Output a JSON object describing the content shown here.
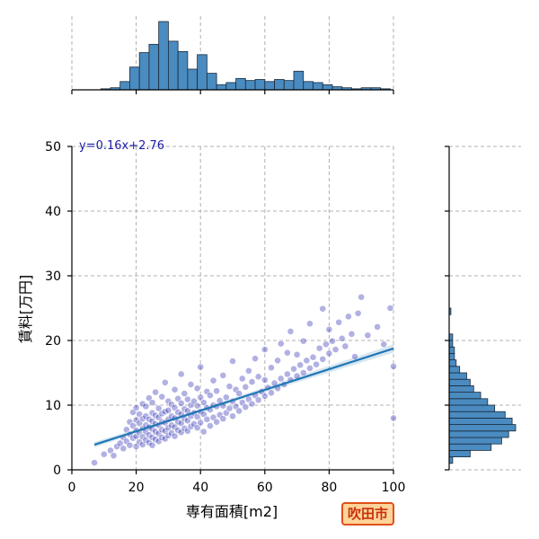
{
  "chart_data": {
    "type": "scatter",
    "xlabel": "専有面積[m2]",
    "ylabel": "賃料[万円]",
    "xlim": [
      0,
      100
    ],
    "ylim": [
      0,
      50
    ],
    "xticks": [
      "0",
      "20",
      "40",
      "60",
      "80",
      "100"
    ],
    "yticks": [
      "0",
      "10",
      "20",
      "30",
      "40",
      "50"
    ],
    "grid": true,
    "annotation": "y=0.16x+2.76",
    "regression": {
      "slope": 0.16,
      "intercept": 2.76,
      "x_range": [
        7,
        100
      ]
    },
    "colors": {
      "points": "#2020b0",
      "regression": "#1f77b4",
      "hist": "#4a8bc0"
    },
    "points": [
      [
        7,
        1.1
      ],
      [
        10,
        2.4
      ],
      [
        12,
        3.0
      ],
      [
        13,
        2.2
      ],
      [
        14,
        3.6
      ],
      [
        15,
        4.1
      ],
      [
        16,
        3.3
      ],
      [
        16,
        5.0
      ],
      [
        17,
        4.4
      ],
      [
        17,
        6.2
      ],
      [
        18,
        3.8
      ],
      [
        18,
        5.5
      ],
      [
        18,
        7.4
      ],
      [
        19,
        4.9
      ],
      [
        19,
        6.8
      ],
      [
        19,
        8.9
      ],
      [
        20,
        3.6
      ],
      [
        20,
        5.2
      ],
      [
        20,
        6.1
      ],
      [
        20,
        7.7
      ],
      [
        20,
        9.6
      ],
      [
        21,
        4.3
      ],
      [
        21,
        5.8
      ],
      [
        21,
        7.2
      ],
      [
        21,
        8.6
      ],
      [
        22,
        3.9
      ],
      [
        22,
        5.1
      ],
      [
        22,
        6.4
      ],
      [
        22,
        7.9
      ],
      [
        22,
        10.2
      ],
      [
        23,
        4.6
      ],
      [
        23,
        5.9
      ],
      [
        23,
        6.9
      ],
      [
        23,
        8.3
      ],
      [
        23,
        9.8
      ],
      [
        24,
        4.2
      ],
      [
        24,
        5.4
      ],
      [
        24,
        6.6
      ],
      [
        24,
        7.8
      ],
      [
        24,
        11.1
      ],
      [
        25,
        3.8
      ],
      [
        25,
        5.0
      ],
      [
        25,
        6.3
      ],
      [
        25,
        7.5
      ],
      [
        25,
        8.8
      ],
      [
        25,
        10.4
      ],
      [
        26,
        4.7
      ],
      [
        26,
        5.9
      ],
      [
        26,
        7.1
      ],
      [
        26,
        8.4
      ],
      [
        26,
        12.0
      ],
      [
        27,
        4.4
      ],
      [
        27,
        5.6
      ],
      [
        27,
        6.9
      ],
      [
        27,
        8.1
      ],
      [
        27,
        9.5
      ],
      [
        28,
        5.0
      ],
      [
        28,
        6.2
      ],
      [
        28,
        7.4
      ],
      [
        28,
        8.7
      ],
      [
        28,
        11.3
      ],
      [
        29,
        4.8
      ],
      [
        29,
        6.0
      ],
      [
        29,
        7.3
      ],
      [
        29,
        9.0
      ],
      [
        29,
        13.5
      ],
      [
        30,
        5.3
      ],
      [
        30,
        6.5
      ],
      [
        30,
        7.8
      ],
      [
        30,
        9.2
      ],
      [
        30,
        10.6
      ],
      [
        31,
        5.7
      ],
      [
        31,
        6.9
      ],
      [
        31,
        8.3
      ],
      [
        31,
        10.1
      ],
      [
        32,
        5.2
      ],
      [
        32,
        6.6
      ],
      [
        32,
        8.0
      ],
      [
        32,
        9.6
      ],
      [
        32,
        12.4
      ],
      [
        33,
        6.1
      ],
      [
        33,
        7.4
      ],
      [
        33,
        8.9
      ],
      [
        33,
        11.0
      ],
      [
        34,
        5.8
      ],
      [
        34,
        7.2
      ],
      [
        34,
        8.6
      ],
      [
        34,
        10.3
      ],
      [
        34,
        14.8
      ],
      [
        35,
        6.4
      ],
      [
        35,
        7.9
      ],
      [
        35,
        9.4
      ],
      [
        35,
        11.8
      ],
      [
        36,
        6.0
      ],
      [
        36,
        7.6
      ],
      [
        36,
        9.1
      ],
      [
        36,
        10.9
      ],
      [
        37,
        6.7
      ],
      [
        37,
        8.3
      ],
      [
        37,
        10.0
      ],
      [
        37,
        13.2
      ],
      [
        38,
        7.1
      ],
      [
        38,
        8.8
      ],
      [
        38,
        10.6
      ],
      [
        39,
        6.5
      ],
      [
        39,
        8.2
      ],
      [
        39,
        9.9
      ],
      [
        39,
        12.6
      ],
      [
        40,
        7.3
      ],
      [
        40,
        9.0
      ],
      [
        40,
        11.2
      ],
      [
        40,
        15.9
      ],
      [
        41,
        5.9
      ],
      [
        41,
        8.6
      ],
      [
        41,
        10.4
      ],
      [
        42,
        7.8
      ],
      [
        42,
        9.6
      ],
      [
        42,
        12.1
      ],
      [
        43,
        6.8
      ],
      [
        43,
        9.3
      ],
      [
        43,
        11.5
      ],
      [
        44,
        8.1
      ],
      [
        44,
        10.0
      ],
      [
        44,
        13.8
      ],
      [
        45,
        7.4
      ],
      [
        45,
        9.8
      ],
      [
        45,
        12.2
      ],
      [
        46,
        8.5
      ],
      [
        46,
        10.7
      ],
      [
        47,
        7.9
      ],
      [
        47,
        9.9
      ],
      [
        47,
        14.6
      ],
      [
        48,
        8.8
      ],
      [
        48,
        11.2
      ],
      [
        49,
        9.5
      ],
      [
        49,
        12.9
      ],
      [
        50,
        8.3
      ],
      [
        50,
        10.6
      ],
      [
        50,
        16.8
      ],
      [
        51,
        9.8
      ],
      [
        51,
        12.4
      ],
      [
        52,
        9.1
      ],
      [
        52,
        11.8
      ],
      [
        53,
        10.4
      ],
      [
        53,
        14.1
      ],
      [
        54,
        9.7
      ],
      [
        54,
        12.8
      ],
      [
        55,
        10.9
      ],
      [
        55,
        15.3
      ],
      [
        56,
        10.2
      ],
      [
        56,
        13.6
      ],
      [
        57,
        11.5
      ],
      [
        57,
        17.2
      ],
      [
        58,
        10.8
      ],
      [
        58,
        14.4
      ],
      [
        59,
        12.1
      ],
      [
        60,
        11.4
      ],
      [
        60,
        13.9
      ],
      [
        60,
        18.6
      ],
      [
        61,
        12.7
      ],
      [
        62,
        11.9
      ],
      [
        62,
        15.8
      ],
      [
        63,
        13.4
      ],
      [
        64,
        12.6
      ],
      [
        64,
        16.9
      ],
      [
        65,
        14.1
      ],
      [
        65,
        19.5
      ],
      [
        66,
        13.2
      ],
      [
        67,
        14.8
      ],
      [
        67,
        18.1
      ],
      [
        68,
        13.9
      ],
      [
        68,
        21.4
      ],
      [
        69,
        15.6
      ],
      [
        70,
        14.5
      ],
      [
        70,
        17.8
      ],
      [
        71,
        16.2
      ],
      [
        72,
        15.0
      ],
      [
        72,
        19.9
      ],
      [
        73,
        16.9
      ],
      [
        74,
        15.7
      ],
      [
        74,
        22.6
      ],
      [
        75,
        17.4
      ],
      [
        76,
        16.3
      ],
      [
        77,
        18.8
      ],
      [
        78,
        17.1
      ],
      [
        78,
        24.9
      ],
      [
        79,
        19.4
      ],
      [
        80,
        18.0
      ],
      [
        80,
        21.7
      ],
      [
        81,
        19.9
      ],
      [
        82,
        18.6
      ],
      [
        83,
        22.8
      ],
      [
        84,
        20.3
      ],
      [
        85,
        19.1
      ],
      [
        86,
        23.7
      ],
      [
        87,
        21.0
      ],
      [
        88,
        17.5
      ],
      [
        89,
        24.2
      ],
      [
        90,
        26.7
      ],
      [
        92,
        20.8
      ],
      [
        95,
        22.1
      ],
      [
        97,
        19.4
      ],
      [
        99,
        25.0
      ],
      [
        100,
        16.0
      ],
      [
        100,
        8.0
      ]
    ],
    "top_hist": {
      "bin_edges": [
        0,
        3,
        6,
        9,
        12,
        15,
        18,
        21,
        24,
        27,
        30,
        33,
        36,
        39,
        42,
        45,
        48,
        51,
        54,
        57,
        60,
        63,
        66,
        69,
        72,
        75,
        78,
        81,
        84,
        87,
        90,
        93,
        96,
        99,
        102
      ],
      "counts": [
        0,
        0,
        0,
        1,
        2,
        8,
        22,
        36,
        44,
        66,
        47,
        37,
        20,
        34,
        16,
        5,
        7,
        11,
        9,
        10,
        8,
        10,
        9,
        18,
        8,
        7,
        5,
        3,
        2,
        1,
        2,
        2,
        1,
        0
      ]
    },
    "right_hist": {
      "bin_edges": [
        0,
        1,
        2,
        3,
        4,
        5,
        6,
        7,
        8,
        9,
        10,
        11,
        12,
        13,
        14,
        15,
        16,
        17,
        18,
        19,
        20,
        21,
        22,
        23,
        24,
        25,
        26
      ],
      "counts": [
        0,
        2,
        12,
        24,
        30,
        34,
        38,
        36,
        32,
        26,
        22,
        18,
        14,
        12,
        10,
        6,
        4,
        3,
        3,
        2,
        2,
        0,
        0,
        0,
        1,
        0
      ]
    }
  },
  "badge": {
    "label": "吹田市",
    "bg": "#ffd49a",
    "border": "#e0501a",
    "text_color": "#c8300a"
  }
}
